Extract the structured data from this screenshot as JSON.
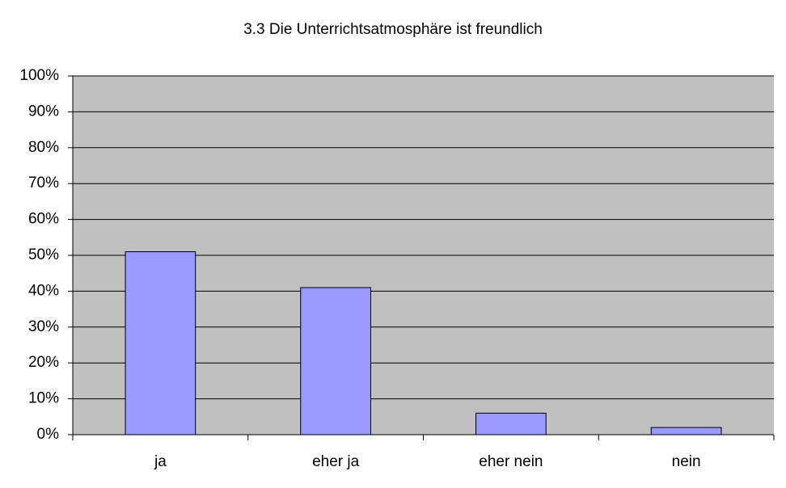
{
  "chart_data": {
    "type": "bar",
    "title": "3.3 Die Unterrichtsatmosphäre ist freundlich",
    "categories": [
      "ja",
      "eher ja",
      "eher nein",
      "nein"
    ],
    "values": [
      51,
      41,
      6,
      2
    ],
    "color": "#9999ff",
    "ylim": [
      0,
      100
    ],
    "yticks": [
      {
        "value": 0,
        "label": "0%"
      },
      {
        "value": 10,
        "label": "10%"
      },
      {
        "value": 20,
        "label": "20%"
      },
      {
        "value": 30,
        "label": "30%"
      },
      {
        "value": 40,
        "label": "40%"
      },
      {
        "value": 50,
        "label": "50%"
      },
      {
        "value": 60,
        "label": "60%"
      },
      {
        "value": 70,
        "label": "70%"
      },
      {
        "value": 80,
        "label": "80%"
      },
      {
        "value": 90,
        "label": "90%"
      },
      {
        "value": 100,
        "label": "100%"
      }
    ],
    "grid": true
  }
}
